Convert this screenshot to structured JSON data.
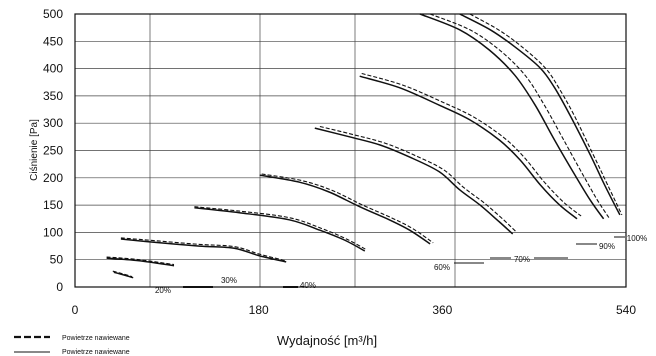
{
  "chart_data": {
    "type": "line",
    "xlabel": "Wydajność [m³/h]",
    "ylabel": "Ciśnienie [Pa]",
    "xlim": [
      0,
      540
    ],
    "ylim": [
      0,
      500
    ],
    "xticks": [
      0,
      180,
      360,
      540
    ],
    "yticks": [
      0,
      50,
      100,
      150,
      200,
      250,
      300,
      350,
      400,
      450,
      500
    ],
    "grid": true,
    "legend": {
      "position": "bottom-left",
      "entries": [
        {
          "label": "Powietrze nawiewane",
          "line_style": "dashed"
        },
        {
          "label": "Powietrze nawiewane",
          "line_style": "solid"
        }
      ]
    },
    "curves": [
      {
        "label": "20%",
        "solid": [
          [
            38,
            27
          ],
          [
            48,
            22
          ],
          [
            57,
            17
          ]
        ],
        "dashed": [
          [
            37,
            29
          ],
          [
            47,
            24
          ],
          [
            56,
            19
          ]
        ]
      },
      {
        "label": "30%",
        "solid": [
          [
            31,
            53
          ],
          [
            63,
            48
          ],
          [
            97,
            39
          ]
        ],
        "dashed": [
          [
            31,
            55
          ],
          [
            63,
            50
          ],
          [
            97,
            41
          ]
        ]
      },
      {
        "label": "40%",
        "solid": [
          [
            45,
            88
          ],
          [
            83,
            81
          ],
          [
            122,
            75
          ],
          [
            156,
            71
          ],
          [
            181,
            57
          ],
          [
            207,
            46
          ]
        ],
        "dashed": [
          [
            45,
            90
          ],
          [
            83,
            84
          ],
          [
            122,
            78
          ],
          [
            156,
            74
          ],
          [
            181,
            60
          ],
          [
            207,
            48
          ]
        ]
      },
      {
        "label": "",
        "solid": [
          [
            117,
            145
          ],
          [
            161,
            136
          ],
          [
            210,
            123
          ],
          [
            240,
            104
          ],
          [
            264,
            86
          ],
          [
            284,
            66
          ]
        ],
        "dashed": [
          [
            117,
            147
          ],
          [
            161,
            139
          ],
          [
            210,
            127
          ],
          [
            242,
            107
          ],
          [
            266,
            88
          ],
          [
            286,
            68
          ]
        ]
      },
      {
        "label": "60%",
        "solid": [
          [
            181,
            205
          ],
          [
            220,
            192
          ],
          [
            249,
            174
          ],
          [
            279,
            147
          ],
          [
            308,
            123
          ],
          [
            328,
            104
          ],
          [
            348,
            79
          ]
        ],
        "dashed": [
          [
            183,
            207
          ],
          [
            222,
            195
          ],
          [
            252,
            177
          ],
          [
            282,
            150
          ],
          [
            311,
            126
          ],
          [
            331,
            107
          ],
          [
            351,
            81
          ]
        ]
      },
      {
        "label": "70%",
        "solid": [
          [
            235,
            291
          ],
          [
            269,
            275
          ],
          [
            299,
            260
          ],
          [
            328,
            238
          ],
          [
            357,
            211
          ],
          [
            377,
            178
          ],
          [
            397,
            150
          ],
          [
            416,
            119
          ],
          [
            429,
            97
          ]
        ],
        "dashed": [
          [
            240,
            294
          ],
          [
            273,
            279
          ],
          [
            303,
            264
          ],
          [
            332,
            242
          ],
          [
            361,
            215
          ],
          [
            381,
            182
          ],
          [
            401,
            154
          ],
          [
            420,
            123
          ],
          [
            433,
            100
          ]
        ]
      },
      {
        "label": "",
        "solid": [
          [
            279,
            386
          ],
          [
            318,
            365
          ],
          [
            357,
            333
          ],
          [
            387,
            306
          ],
          [
            416,
            269
          ],
          [
            436,
            233
          ],
          [
            456,
            187
          ],
          [
            475,
            150
          ],
          [
            492,
            125
          ]
        ],
        "dashed": [
          [
            281,
            391
          ],
          [
            321,
            370
          ],
          [
            361,
            338
          ],
          [
            391,
            311
          ],
          [
            420,
            274
          ],
          [
            440,
            238
          ],
          [
            460,
            192
          ],
          [
            479,
            155
          ],
          [
            496,
            130
          ]
        ]
      },
      {
        "label": "90%",
        "solid": [
          [
            338,
            500
          ],
          [
            377,
            471
          ],
          [
            406,
            434
          ],
          [
            431,
            388
          ],
          [
            451,
            333
          ],
          [
            470,
            269
          ],
          [
            490,
            205
          ],
          [
            505,
            159
          ],
          [
            518,
            125
          ]
        ],
        "dashed": [
          [
            348,
            500
          ],
          [
            387,
            471
          ],
          [
            416,
            434
          ],
          [
            441,
            388
          ],
          [
            460,
            333
          ],
          [
            479,
            269
          ],
          [
            498,
            205
          ],
          [
            512,
            159
          ],
          [
            524,
            125
          ]
        ]
      },
      {
        "label": "100%",
        "solid": [
          [
            377,
            500
          ],
          [
            407,
            471
          ],
          [
            431,
            440
          ],
          [
            456,
            401
          ],
          [
            470,
            365
          ],
          [
            485,
            315
          ],
          [
            505,
            242
          ],
          [
            519,
            187
          ],
          [
            534,
            132
          ]
        ],
        "dashed": [
          [
            387,
            500
          ],
          [
            415,
            471
          ],
          [
            438,
            440
          ],
          [
            461,
            401
          ],
          [
            474,
            365
          ],
          [
            489,
            315
          ],
          [
            508,
            242
          ],
          [
            522,
            187
          ],
          [
            536,
            132
          ]
        ]
      }
    ]
  }
}
